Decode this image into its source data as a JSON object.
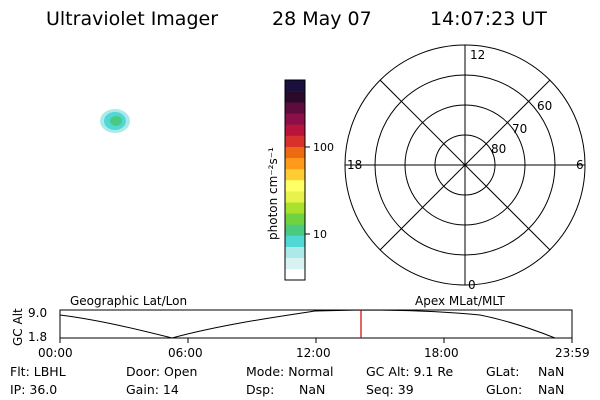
{
  "header": {
    "title": "Ultraviolet Imager",
    "date": "28 May 07",
    "time": "14:07:23 UT"
  },
  "colorbar": {
    "unit_label": "photon cm⁻²s⁻¹",
    "ticks": [
      "100",
      "10"
    ],
    "colors": [
      "#ffffff",
      "#d9f3f3",
      "#aee9ea",
      "#4fd8d6",
      "#4aca80",
      "#6fd23e",
      "#a8e22c",
      "#e8f24a",
      "#ffff66",
      "#ffcc33",
      "#ff9a1a",
      "#ee6a10",
      "#d8302a",
      "#b8133c",
      "#8c0f47",
      "#5c0d3b",
      "#2a0a2a",
      "#1a1040"
    ]
  },
  "polar": {
    "mlt_labels": {
      "top": "12",
      "left": "18",
      "right": "6",
      "bottom": "0"
    },
    "lat_labels": [
      "60",
      "70",
      "80"
    ]
  },
  "track": {
    "left_title": "Geographic Lat/Lon",
    "right_title": "Apex MLat/MLT",
    "y_axis_label": "GC Alt",
    "y_ticks": [
      "9.0",
      "1.8"
    ],
    "x_ticks": [
      "00:00",
      "06:00",
      "12:00",
      "18:00",
      "23:59"
    ]
  },
  "info": {
    "flt": "Flt: LBHL",
    "ip": "IP: 36.0",
    "door": "Door: Open",
    "gain": "Gain: 14",
    "mode": "Mode: Normal",
    "dsp_label": "Dsp:",
    "dsp_value": "NaN",
    "gcalt": "GC Alt: 9.1 Re",
    "seq": "Seq: 39",
    "glat_label": "GLat:",
    "glat_value": "NaN",
    "glon_label": "GLon:",
    "glon_value": "NaN"
  },
  "colors": {
    "marker_line": "#cc0000",
    "blob_outer": "#aee9ea",
    "blob_mid": "#4fd8d6",
    "blob_core": "#4aca80"
  }
}
